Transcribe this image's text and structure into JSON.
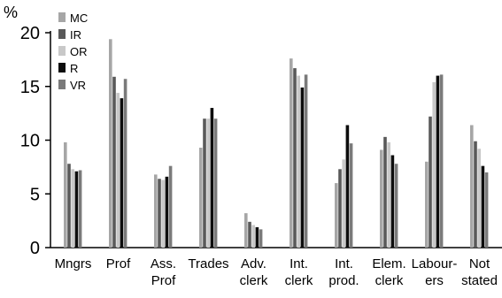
{
  "chart_data": {
    "type": "bar",
    "unit_label": "%",
    "categories": [
      [
        "Mngrs"
      ],
      [
        "Prof"
      ],
      [
        "Ass.",
        "Prof"
      ],
      [
        "Trades"
      ],
      [
        "Adv.",
        "clerk"
      ],
      [
        "Int.",
        "clerk"
      ],
      [
        "Int.",
        "prod."
      ],
      [
        "Elem.",
        "clerk"
      ],
      [
        "Labour-",
        "ers"
      ],
      [
        "Not",
        "stated"
      ]
    ],
    "series": [
      {
        "name": "MC",
        "color": "#a6a6a6",
        "values": [
          9.8,
          19.4,
          6.8,
          9.3,
          3.2,
          17.6,
          6.0,
          9.1,
          8.0,
          11.4
        ]
      },
      {
        "name": "IR",
        "color": "#595959",
        "values": [
          7.8,
          15.9,
          6.4,
          12.0,
          2.4,
          16.7,
          7.3,
          10.3,
          12.2,
          9.9
        ]
      },
      {
        "name": "OR",
        "color": "#c8c8c8",
        "values": [
          7.3,
          14.4,
          6.3,
          12.0,
          2.1,
          16.0,
          8.2,
          9.8,
          15.4,
          9.2
        ]
      },
      {
        "name": "R",
        "color": "#0d0d0d",
        "values": [
          7.1,
          13.9,
          6.6,
          13.0,
          1.9,
          14.9,
          11.4,
          8.6,
          16.0,
          7.6
        ]
      },
      {
        "name": "VR",
        "color": "#7a7a7a",
        "values": [
          7.2,
          15.7,
          7.6,
          12.0,
          1.7,
          16.1,
          9.7,
          7.8,
          16.1,
          7.0
        ]
      }
    ],
    "y_ticks": [
      0,
      5,
      10,
      15,
      20
    ],
    "ylim": [
      0,
      20
    ],
    "grid": false,
    "legend_position": "top-left"
  }
}
